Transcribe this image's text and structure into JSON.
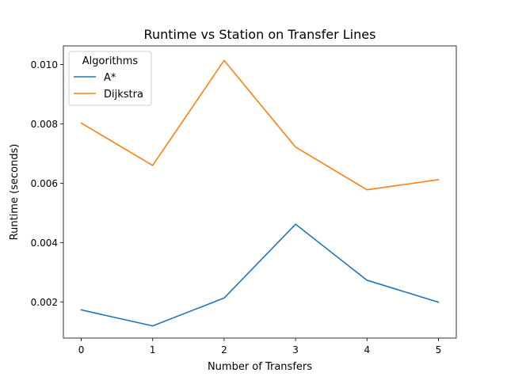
{
  "chart_data": {
    "type": "line",
    "title": "Runtime vs Station on Transfer Lines",
    "xlabel": "Number of Transfers",
    "ylabel": "Runtime (seconds)",
    "x": [
      0,
      1,
      2,
      3,
      4,
      5
    ],
    "xticks": [
      "0",
      "1",
      "2",
      "3",
      "4",
      "5"
    ],
    "yticks": [
      "0.002",
      "0.004",
      "0.006",
      "0.008",
      "0.010"
    ],
    "xlim": [
      -0.25,
      5.25
    ],
    "ylim": [
      0.00078,
      0.01063
    ],
    "grid": false,
    "legend": {
      "title": "Algorithms",
      "placement": "top-left"
    },
    "series": [
      {
        "name": "A*",
        "color": "#1f77b4",
        "values": [
          0.00173,
          0.00119,
          0.00213,
          0.00462,
          0.00273,
          0.00199
        ]
      },
      {
        "name": "Dijkstra",
        "color": "#ff7f0e",
        "values": [
          0.00803,
          0.0066,
          0.01014,
          0.00722,
          0.00578,
          0.00612
        ]
      }
    ]
  }
}
